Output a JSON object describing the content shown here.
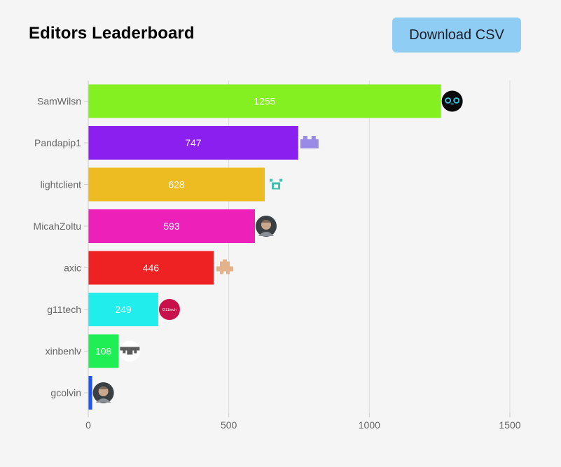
{
  "header": {
    "title": "Editors Leaderboard",
    "download_label": "Download CSV"
  },
  "colors": {
    "background": "#f5f5f5",
    "button": "#90cdf4",
    "grid": "#dcdcdc"
  },
  "chart_data": {
    "type": "bar",
    "orientation": "horizontal",
    "title": "Editors Leaderboard",
    "xlabel": "",
    "ylabel": "",
    "xlim": [
      0,
      1500
    ],
    "xticks": [
      0,
      500,
      1000,
      1500
    ],
    "grid": true,
    "categories": [
      "SamWilsn",
      "Pandapip1",
      "lightclient",
      "MicahZoltu",
      "axic",
      "g11tech",
      "xinbenlv",
      "gcolvin"
    ],
    "values": [
      1255,
      747,
      628,
      593,
      446,
      249,
      108,
      14
    ],
    "value_labels": [
      "1255",
      "747",
      "628",
      "593",
      "446",
      "249",
      "108",
      ""
    ],
    "colors": [
      "#84f021",
      "#8a1ff0",
      "#edbc23",
      "#ed21b9",
      "#ee2222",
      "#21eded",
      "#20ee55",
      "#2255ee"
    ],
    "avatars": [
      "robot-face-avatar",
      "purple-block-avatar",
      "teal-pixel-avatar",
      "photo-avatar",
      "tan-pixel-avatar",
      "g11tech-logo-avatar",
      "gray-pixel-avatar",
      "photo-avatar"
    ],
    "avatar_texts": [
      "",
      "",
      "",
      "",
      "",
      "G11tech",
      "",
      ""
    ]
  }
}
